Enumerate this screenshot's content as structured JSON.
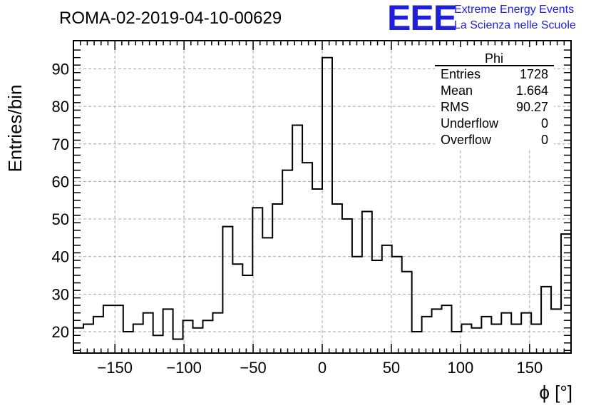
{
  "header": {
    "run_title": "ROMA-02-2019-04-10-00629",
    "logo_text": "EEE",
    "logo_line1": "Extreme Energy Events",
    "logo_line2": "La Scienza nelle Scuole",
    "logo_color": "#1f1fd8"
  },
  "stats": {
    "name": "Phi",
    "rows": [
      {
        "label": "Entries",
        "value": "1728"
      },
      {
        "label": "Mean",
        "value": "1.664"
      },
      {
        "label": "RMS",
        "value": "90.27"
      },
      {
        "label": "Underflow",
        "value": "0"
      },
      {
        "label": "Overflow",
        "value": "0"
      }
    ]
  },
  "chart_data": {
    "type": "histogram",
    "title": "ROMA-02-2019-04-10-00629",
    "xlabel": "ϕ [°]",
    "ylabel": "Entries/bin",
    "xlim": [
      -180,
      180
    ],
    "ylim": [
      14.3,
      97.5
    ],
    "bin_width": 7.2,
    "bin_start": -180,
    "values": [
      21,
      22,
      24,
      27,
      27,
      20,
      22,
      25,
      19,
      26,
      18,
      23,
      21,
      23,
      25,
      48,
      38,
      35,
      53,
      45,
      54,
      63,
      75,
      65,
      58,
      93,
      54,
      50,
      40,
      52,
      39,
      43,
      40,
      36,
      20,
      24,
      26,
      27,
      20,
      22,
      21,
      24,
      22,
      25,
      22,
      25,
      22,
      32,
      26,
      46
    ],
    "xticks": [
      -150,
      -100,
      -50,
      0,
      50,
      100,
      150
    ],
    "xtick_labels": [
      "−150",
      "−100",
      "−50",
      "0",
      "50",
      "100",
      "150"
    ],
    "yticks": [
      20,
      30,
      40,
      50,
      60,
      70,
      80,
      90
    ],
    "grid": true,
    "line_color": "#000000"
  }
}
